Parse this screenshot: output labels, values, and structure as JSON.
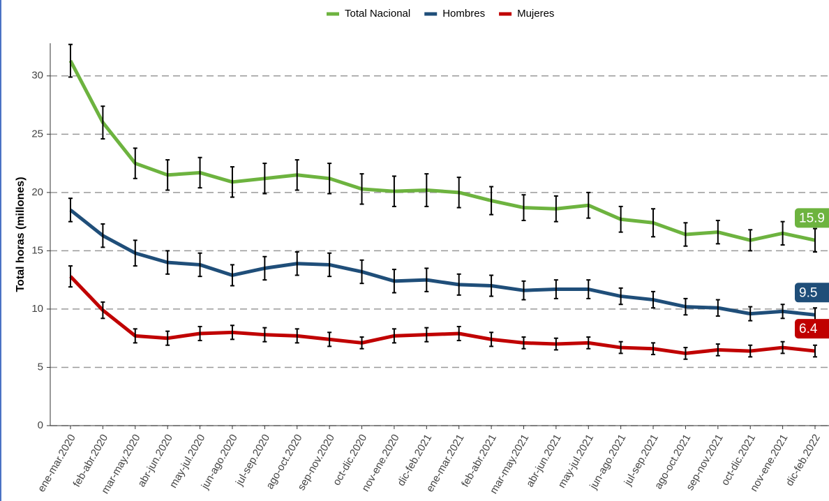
{
  "chart_data": {
    "type": "line",
    "y_label": "Total horas (millones)",
    "categories": [
      "ene-mar.2020",
      "feb-abr.2020",
      "mar-may.2020",
      "abr-jun.2020",
      "may-jul.2020",
      "jun-ago.2020",
      "jul-sep.2020",
      "ago-oct.2020",
      "sep-nov.2020",
      "oct-dic.2020",
      "nov-ene.2020",
      "dic-feb.2021",
      "ene-mar.2021",
      "feb-abr.2021",
      "mar-may.2021",
      "abr-jun.2021",
      "may-jul.2021",
      "jun-ago.2021",
      "jul-sep.2021",
      "ago-oct.2021",
      "sep-nov.2021",
      "oct-dic.2021",
      "nov-ene.2021",
      "dic-feb.2022"
    ],
    "series": [
      {
        "name": "Total Nacional",
        "color": "#6db33f",
        "values": [
          31.3,
          26.0,
          22.5,
          21.5,
          21.7,
          20.9,
          21.2,
          21.5,
          21.2,
          20.3,
          20.1,
          20.2,
          20.0,
          19.3,
          18.7,
          18.6,
          18.9,
          17.7,
          17.4,
          16.4,
          16.6,
          15.9,
          16.5,
          15.9
        ],
        "errors": [
          1.4,
          1.4,
          1.3,
          1.3,
          1.3,
          1.3,
          1.3,
          1.3,
          1.3,
          1.3,
          1.3,
          1.4,
          1.3,
          1.2,
          1.1,
          1.1,
          1.1,
          1.1,
          1.2,
          1.0,
          1.0,
          0.9,
          1.0,
          1.0
        ]
      },
      {
        "name": "Hombres",
        "color": "#1f4e79",
        "values": [
          18.5,
          16.3,
          14.8,
          14.0,
          13.8,
          12.9,
          13.5,
          13.9,
          13.8,
          13.2,
          12.4,
          12.5,
          12.1,
          12.0,
          11.6,
          11.7,
          11.7,
          11.1,
          10.8,
          10.2,
          10.1,
          9.6,
          9.8,
          9.5
        ],
        "errors": [
          1.0,
          1.0,
          1.1,
          1.0,
          1.0,
          0.9,
          1.0,
          1.0,
          1.0,
          1.0,
          1.0,
          1.0,
          0.9,
          0.9,
          0.8,
          0.8,
          0.8,
          0.7,
          0.7,
          0.7,
          0.7,
          0.6,
          0.6,
          0.6
        ]
      },
      {
        "name": "Mujeres",
        "color": "#c00000",
        "values": [
          12.8,
          9.9,
          7.7,
          7.5,
          7.9,
          8.0,
          7.8,
          7.7,
          7.4,
          7.1,
          7.7,
          7.8,
          7.9,
          7.4,
          7.1,
          7.0,
          7.1,
          6.7,
          6.6,
          6.2,
          6.5,
          6.4,
          6.7,
          6.4
        ],
        "errors": [
          0.9,
          0.7,
          0.6,
          0.6,
          0.6,
          0.6,
          0.6,
          0.6,
          0.6,
          0.5,
          0.6,
          0.6,
          0.6,
          0.6,
          0.5,
          0.5,
          0.5,
          0.5,
          0.5,
          0.5,
          0.5,
          0.5,
          0.5,
          0.5
        ]
      }
    ],
    "ylim": [
      0,
      32.8
    ],
    "yticks": [
      0,
      5,
      10,
      15,
      20,
      25,
      30
    ],
    "grid": true,
    "legend": "top"
  }
}
